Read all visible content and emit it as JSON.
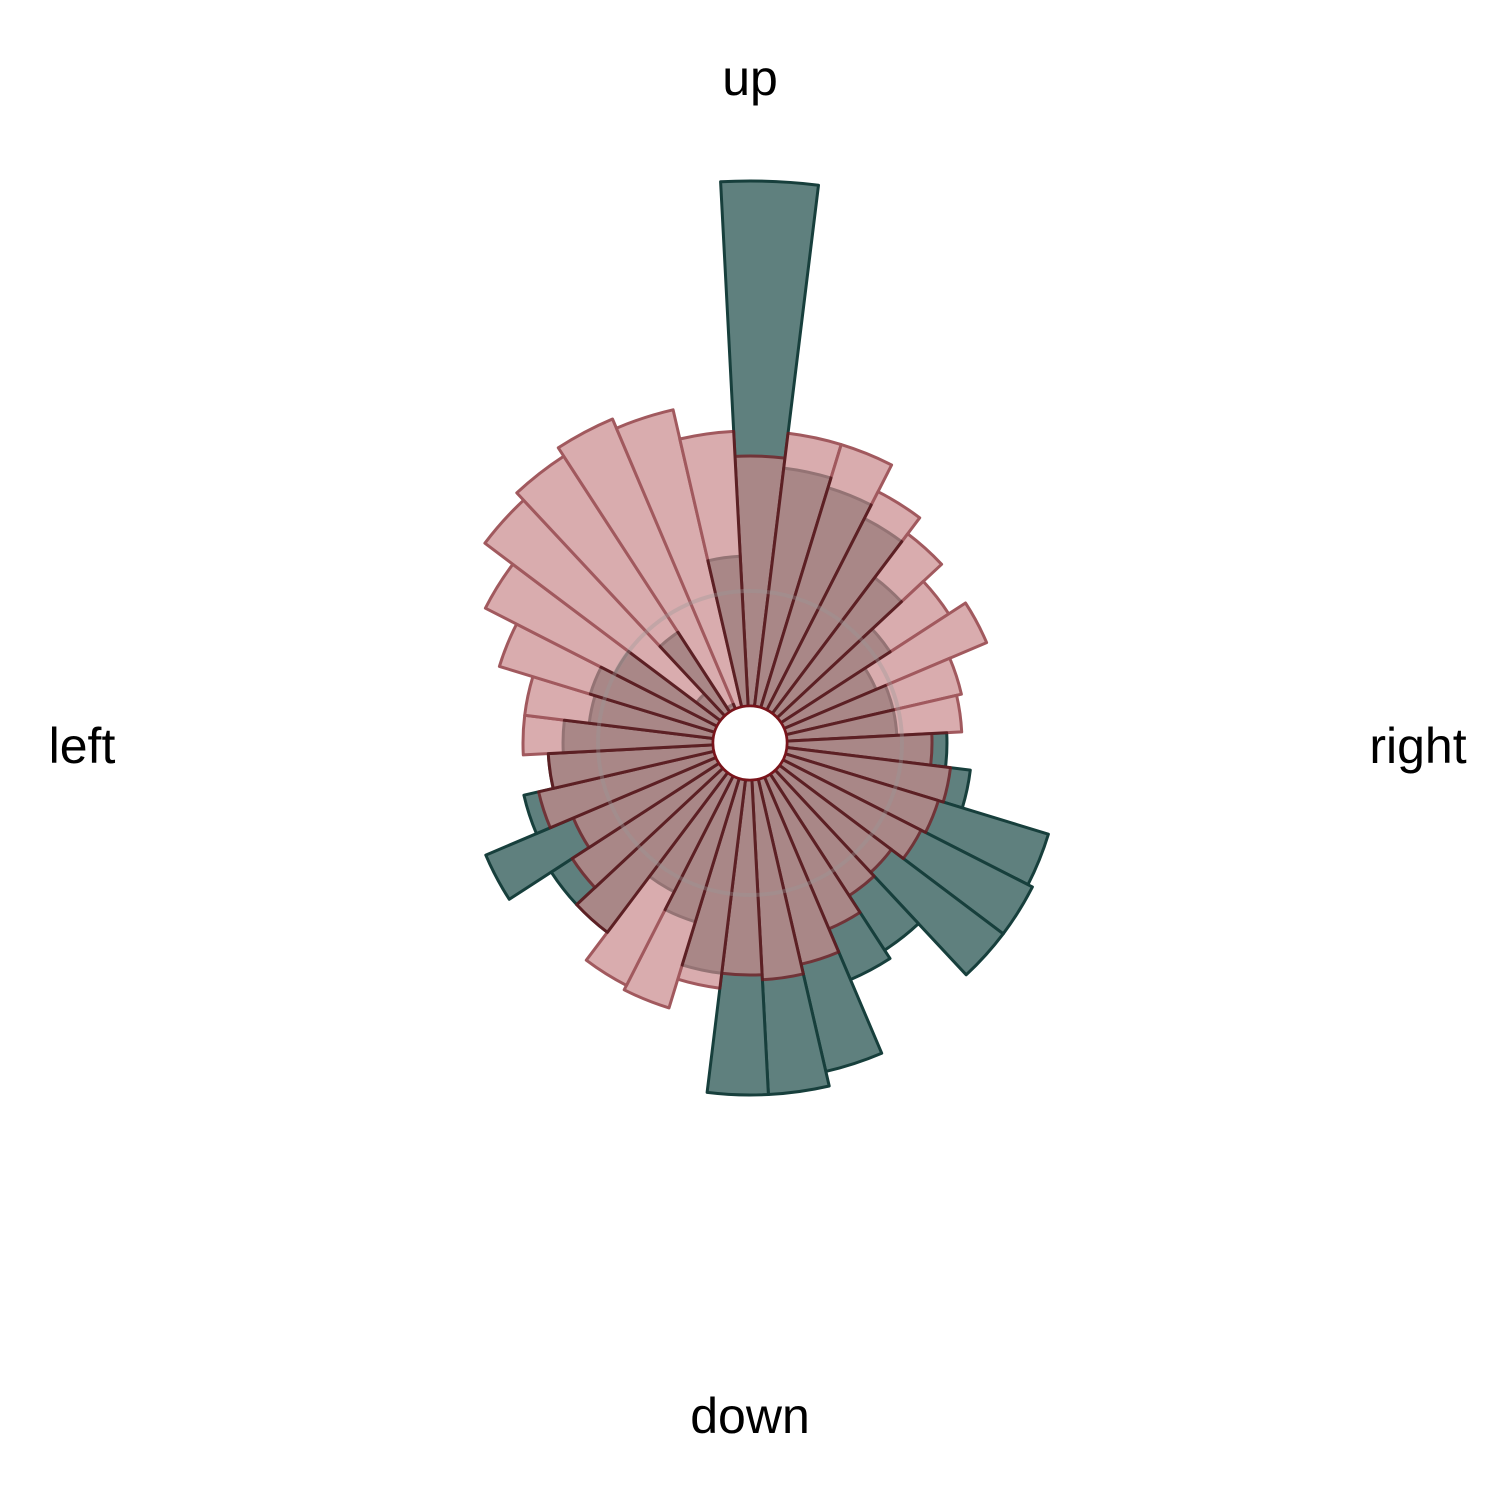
{
  "chart_data": {
    "type": "polar-histogram",
    "direction_labels": {
      "up": "up",
      "down": "down",
      "left": "left",
      "right": "right"
    },
    "bins": 36,
    "bin_width_deg": 10,
    "first_bin_start_deg": -3,
    "angle_reference": "0 = up, clockwise",
    "radial_range": [
      0,
      10
    ],
    "series": [
      {
        "values": [
          10.5,
          4.8,
          4.6,
          4.3,
          3.4,
          2.6,
          2.0,
          2.2,
          2.2,
          3.2,
          3.7,
          5.5,
          5.6,
          5.6,
          4.2,
          4.4,
          6.0,
          6.3,
          6.3,
          3.9,
          3.0,
          2.6,
          4.0,
          4.0,
          5.0,
          3.9,
          3.3,
          3.0,
          2.5,
          2.6,
          2.3,
          0.6,
          1.9,
          0.1,
          0.0,
          3.0
        ],
        "fill": "#5f807e",
        "stroke": "#173f3c"
      },
      {
        "values": [
          5.0,
          5.5,
          5.5,
          4.9,
          4.5,
          4.0,
          4.4,
          3.6,
          3.5,
          2.9,
          3.3,
          3.2,
          3.1,
          2.8,
          2.9,
          3.3,
          3.8,
          4.0,
          3.9,
          4.2,
          4.8,
          4.7,
          4.0,
          3.5,
          3.1,
          3.6,
          3.3,
          3.8,
          3.8,
          4.5,
          5.2,
          5.9,
          6.1,
          6.3,
          6.1,
          5.5
        ],
        "fill": "#c98a8c",
        "stroke": "#7a141b",
        "opacity": 0.7
      }
    ],
    "reference_circle": {
      "value": 2.3,
      "color": "#999999"
    }
  }
}
